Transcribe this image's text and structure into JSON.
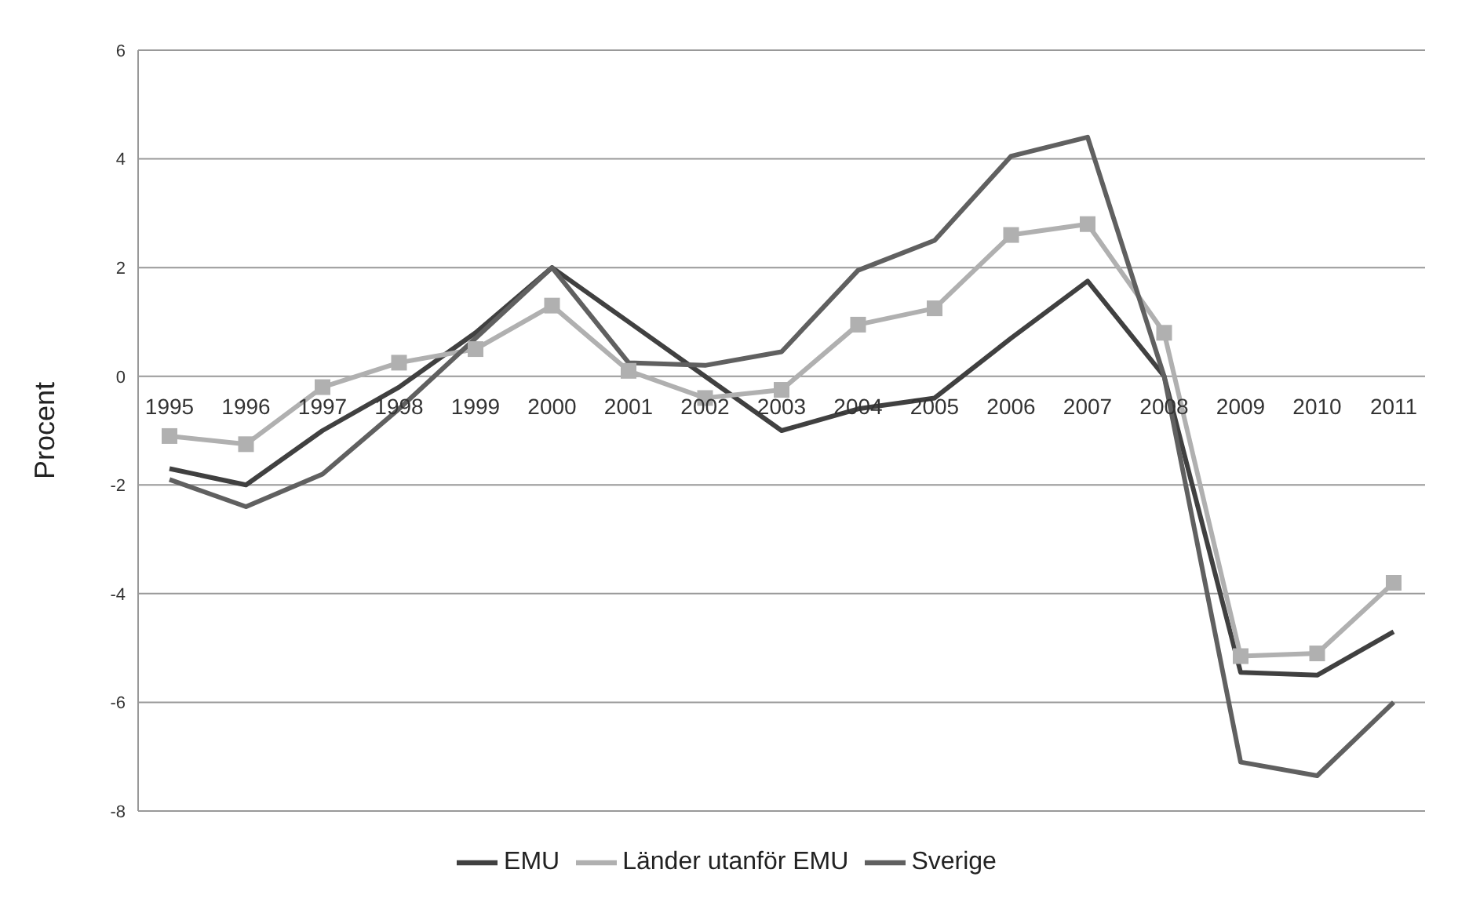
{
  "chart_data": {
    "type": "line",
    "ylabel": "Procent",
    "categories": [
      "1995",
      "1996",
      "1997",
      "1998",
      "1999",
      "2000",
      "2001",
      "2002",
      "2003",
      "2004",
      "2005",
      "2006",
      "2007",
      "2008",
      "2009",
      "2010",
      "2011"
    ],
    "series": [
      {
        "name": "EMU",
        "color": "#404040",
        "marker": "none",
        "values": [
          -1.7,
          -2.0,
          -1.0,
          -0.2,
          0.8,
          2.0,
          1.0,
          0.0,
          -1.0,
          -0.6,
          -0.4,
          0.7,
          1.75,
          0.0,
          -5.45,
          -5.5,
          -4.7
        ]
      },
      {
        "name": "Länder utanför EMU",
        "color": "#b0b0b0",
        "marker": "square",
        "values": [
          -1.1,
          -1.25,
          -0.2,
          0.25,
          0.5,
          1.3,
          0.1,
          -0.4,
          -0.25,
          0.95,
          1.25,
          2.6,
          2.8,
          0.8,
          -5.15,
          -5.1,
          -3.8
        ]
      },
      {
        "name": "Sverige",
        "color": "#606060",
        "marker": "none",
        "values": [
          -1.9,
          -2.4,
          -1.8,
          -0.6,
          0.7,
          2.0,
          0.25,
          0.2,
          0.45,
          1.95,
          2.5,
          4.05,
          4.4,
          0.0,
          -7.1,
          -7.35,
          -6.0
        ]
      }
    ],
    "ylim": [
      -8,
      6
    ],
    "yticks": [
      -8,
      -6,
      -4,
      -2,
      0,
      2,
      4,
      6
    ],
    "grid": "y",
    "legend": "bottom"
  }
}
